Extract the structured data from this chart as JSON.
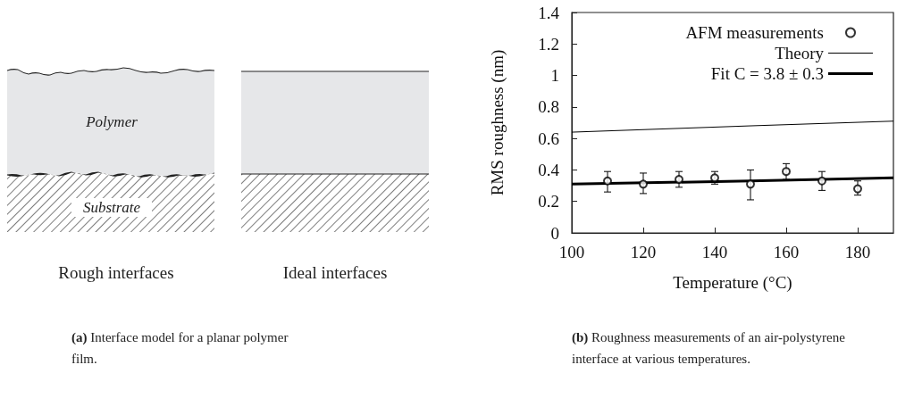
{
  "chart_data": [
    {
      "type": "other",
      "annotations": [
        "Polymer",
        "Substrate",
        "Rough interfaces",
        "Ideal interfaces",
        "(a) Interface model for a planar polymer film."
      ]
    },
    {
      "type": "scatter",
      "xlabel": "Temperature (°C)",
      "ylabel": "RMS roughness (nm)",
      "x": [
        110,
        120,
        130,
        140,
        150,
        160,
        170,
        180
      ],
      "series": [
        {
          "name": "AFM measurements",
          "type": "scatter",
          "color": "#000000",
          "marker": "circle",
          "values": [
            0.33,
            0.31,
            0.34,
            0.35,
            0.31,
            0.39,
            0.33,
            0.28
          ],
          "errors": [
            [
              0.26,
              0.39
            ],
            [
              0.25,
              0.38
            ],
            [
              0.29,
              0.39
            ],
            [
              0.31,
              0.39
            ],
            [
              0.21,
              0.4
            ],
            [
              0.34,
              0.44
            ],
            [
              0.27,
              0.39
            ],
            [
              0.24,
              0.33
            ]
          ]
        },
        {
          "name": "Theory",
          "type": "line",
          "color": "#000000",
          "x": [
            100,
            150,
            190
          ],
          "values": [
            0.64,
            0.68,
            0.71
          ]
        },
        {
          "name": "Fit C = 3.8 ± 0.3",
          "type": "line",
          "color": "#000000",
          "x": [
            100,
            150,
            190
          ],
          "values": [
            0.31,
            0.33,
            0.35
          ]
        }
      ],
      "xlim": [
        100,
        190
      ],
      "xticks": [
        100,
        120,
        140,
        160,
        180
      ],
      "ylim": [
        0,
        1.4
      ],
      "yticks": [
        0,
        0.2,
        0.4,
        0.6,
        0.8,
        1,
        1.2,
        1.4
      ],
      "legend": "top right",
      "annotations": [
        "(b) Roughness measurements of an air-polystyrene interface at various temperatures."
      ]
    }
  ]
}
